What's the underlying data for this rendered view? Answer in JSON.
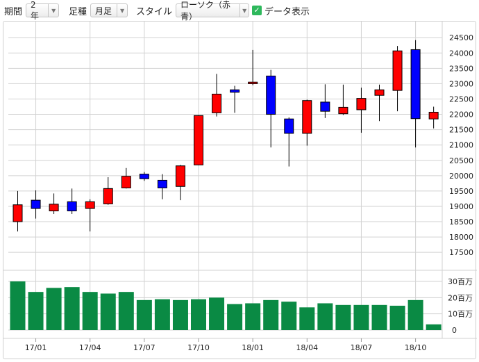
{
  "toolbar": {
    "period_label": "期間",
    "period_value": "2年",
    "bar_label": "足種",
    "bar_value": "月足",
    "style_label": "スタイル",
    "style_value": "ローソク（赤青）",
    "show_data_label": "データ表示",
    "show_data_checked": true
  },
  "colors": {
    "up": "#ff0000",
    "down": "#0000ff",
    "volume": "#0a8a44",
    "grid": "#d2d2d2",
    "check": "#2eb85c"
  },
  "chart_data": {
    "type": "candlestick",
    "price_ticks": [
      "17500",
      "18000",
      "18500",
      "19000",
      "19500",
      "20000",
      "20500",
      "21000",
      "21500",
      "22000",
      "22500",
      "23000",
      "23500",
      "24000",
      "24500"
    ],
    "volume_ticks": [
      "0",
      "10百万",
      "20百万",
      "30百万"
    ],
    "x_tick_labels": [
      "17/01",
      "17/04",
      "17/07",
      "17/10",
      "18/01",
      "18/04",
      "18/07",
      "18/10"
    ],
    "ylim": [
      17050,
      24800
    ],
    "volume_max": 33,
    "grid": true,
    "candles": [
      {
        "open": 18500,
        "high": 19500,
        "low": 18180,
        "close": 19050
      },
      {
        "open": 19200,
        "high": 19520,
        "low": 18600,
        "close": 18930
      },
      {
        "open": 18850,
        "high": 19420,
        "low": 18750,
        "close": 19070
      },
      {
        "open": 19150,
        "high": 19580,
        "low": 18750,
        "close": 18850
      },
      {
        "open": 18930,
        "high": 19230,
        "low": 18180,
        "close": 19150
      },
      {
        "open": 19080,
        "high": 19950,
        "low": 19050,
        "close": 19580
      },
      {
        "open": 19600,
        "high": 20250,
        "low": 19580,
        "close": 19980
      },
      {
        "open": 20050,
        "high": 20120,
        "low": 19830,
        "close": 19900
      },
      {
        "open": 19850,
        "high": 20050,
        "low": 19230,
        "close": 19600
      },
      {
        "open": 19650,
        "high": 20350,
        "low": 19200,
        "close": 20320
      },
      {
        "open": 20350,
        "high": 21980,
        "low": 20340,
        "close": 21960
      },
      {
        "open": 22050,
        "high": 23320,
        "low": 21930,
        "close": 22660
      },
      {
        "open": 22800,
        "high": 22930,
        "low": 22050,
        "close": 22720
      },
      {
        "open": 23000,
        "high": 24100,
        "low": 22950,
        "close": 23050
      },
      {
        "open": 23250,
        "high": 23450,
        "low": 20920,
        "close": 22000
      },
      {
        "open": 21850,
        "high": 21900,
        "low": 20300,
        "close": 21380
      },
      {
        "open": 21380,
        "high": 22480,
        "low": 20980,
        "close": 22450
      },
      {
        "open": 22400,
        "high": 22980,
        "low": 21880,
        "close": 22100
      },
      {
        "open": 22020,
        "high": 22970,
        "low": 21980,
        "close": 22230
      },
      {
        "open": 22150,
        "high": 22870,
        "low": 21400,
        "close": 22520
      },
      {
        "open": 22620,
        "high": 22970,
        "low": 21780,
        "close": 22800
      },
      {
        "open": 22780,
        "high": 24230,
        "low": 22100,
        "close": 24070
      },
      {
        "open": 24110,
        "high": 24420,
        "low": 20920,
        "close": 21860
      },
      {
        "open": 21850,
        "high": 22250,
        "low": 21540,
        "close": 22070
      }
    ],
    "volume": [
      30,
      23.5,
      26,
      26.5,
      23.5,
      22.5,
      23.5,
      18.5,
      19,
      18.5,
      19,
      20,
      16,
      16.5,
      18.5,
      17.5,
      14,
      16.5,
      15.5,
      15.5,
      15.5,
      15,
      18.5,
      3.5
    ]
  }
}
